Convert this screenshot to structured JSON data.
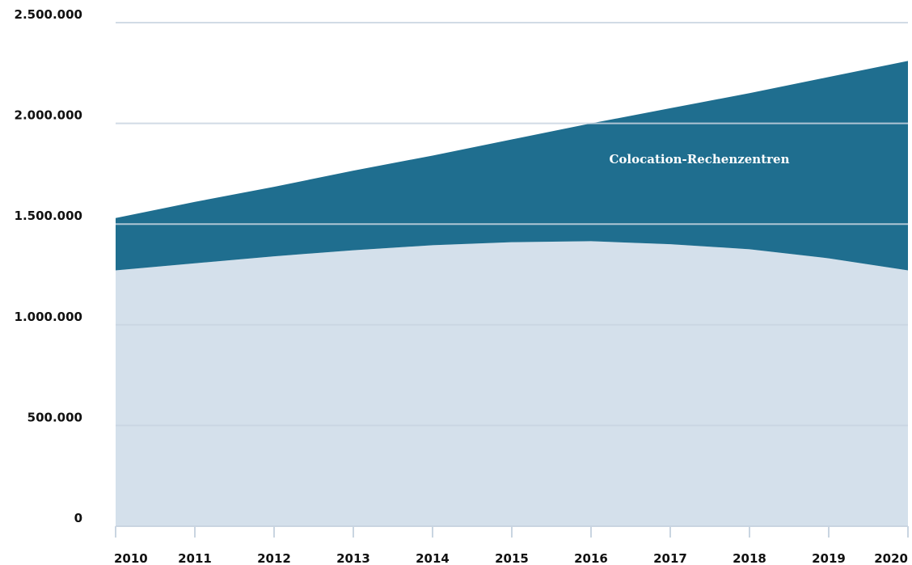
{
  "chart_data": {
    "type": "area",
    "stacked": true,
    "x": [
      2010,
      2011,
      2012,
      2013,
      2014,
      2015,
      2016,
      2017,
      2018,
      2019,
      2020
    ],
    "series": [
      {
        "color": "#d4e0eb",
        "values": [
          1270000,
          1305000,
          1340000,
          1370000,
          1395000,
          1410000,
          1415000,
          1400000,
          1375000,
          1330000,
          1270000
        ]
      },
      {
        "name": "Colocation-Rechenzentren",
        "color": "#1f6e8f",
        "values": [
          260000,
          305000,
          345000,
          395000,
          445000,
          510000,
          585000,
          675000,
          775000,
          900000,
          1040000
        ]
      }
    ],
    "xlim": [
      2010,
      2020
    ],
    "xticks": [
      2010,
      2011,
      2012,
      2013,
      2014,
      2015,
      2016,
      2017,
      2018,
      2019,
      2020
    ],
    "ylim": [
      0,
      2500000
    ],
    "yticks": [
      0,
      {
        "value": 500000,
        "label": "500.000"
      },
      {
        "value": 1000000,
        "label": "1.000.000"
      },
      {
        "value": 1500000,
        "label": "1.500.000"
      },
      {
        "value": 2000000,
        "label": "2.000.000"
      },
      {
        "value": 2500000,
        "label": "2.500.000"
      }
    ],
    "grid": true
  }
}
